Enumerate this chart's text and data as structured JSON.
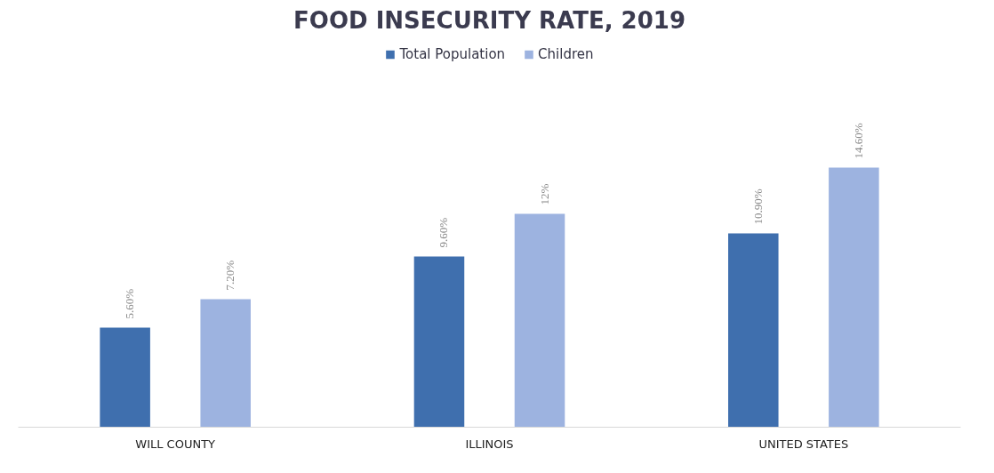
{
  "chart_data": {
    "type": "bar",
    "title": "FOOD INSECURITY RATE, 2019",
    "categories": [
      "WILL COUNTY",
      "ILLINOIS",
      "UNITED STATES"
    ],
    "series": [
      {
        "name": "Total Population",
        "color": "#3f6fae",
        "values": [
          5.6,
          9.6,
          10.9
        ],
        "value_labels": [
          "5.60%",
          "9.60%",
          "10.90%"
        ]
      },
      {
        "name": "Children",
        "color": "#9db3e0",
        "values": [
          7.2,
          12,
          14.6
        ],
        "value_labels": [
          "7.20%",
          "12%",
          "14.60%"
        ]
      }
    ],
    "legend": "top"
  }
}
